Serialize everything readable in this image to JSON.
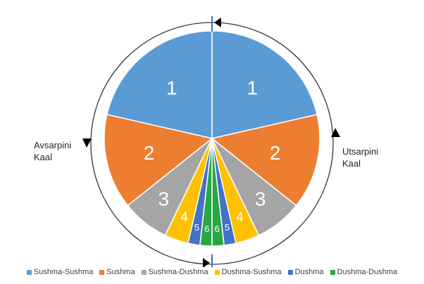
{
  "labels": {
    "left": {
      "line1": "Avsarpini",
      "line2": "Kaal"
    },
    "right": {
      "line1": "Utsarpini",
      "line2": "Kaal"
    }
  },
  "categories": [
    {
      "name": "Sushma-Sushma",
      "color": "#5b9bd5",
      "number": "1",
      "size": 6
    },
    {
      "name": "Sushma",
      "color": "#ed7d31",
      "number": "2",
      "size": 4
    },
    {
      "name": "Sushma-Dushma",
      "color": "#a5a5a5",
      "number": "3",
      "size": 2
    },
    {
      "name": "Dushma-Sushma",
      "color": "#ffc000",
      "number": "4",
      "size": 1
    },
    {
      "name": "Dushma",
      "color": "#4472c4",
      "number": "5",
      "size": 0.5
    },
    {
      "name": "Dushma-Dushma",
      "color": "#28a745",
      "number": "6",
      "size": 0.5
    }
  ],
  "legend": [
    "Sushma-Sushma",
    "Sushma",
    "Sushma-Dushma",
    "Dushma-Sushma",
    "Dushma",
    "Dushma-Dushma"
  ]
}
